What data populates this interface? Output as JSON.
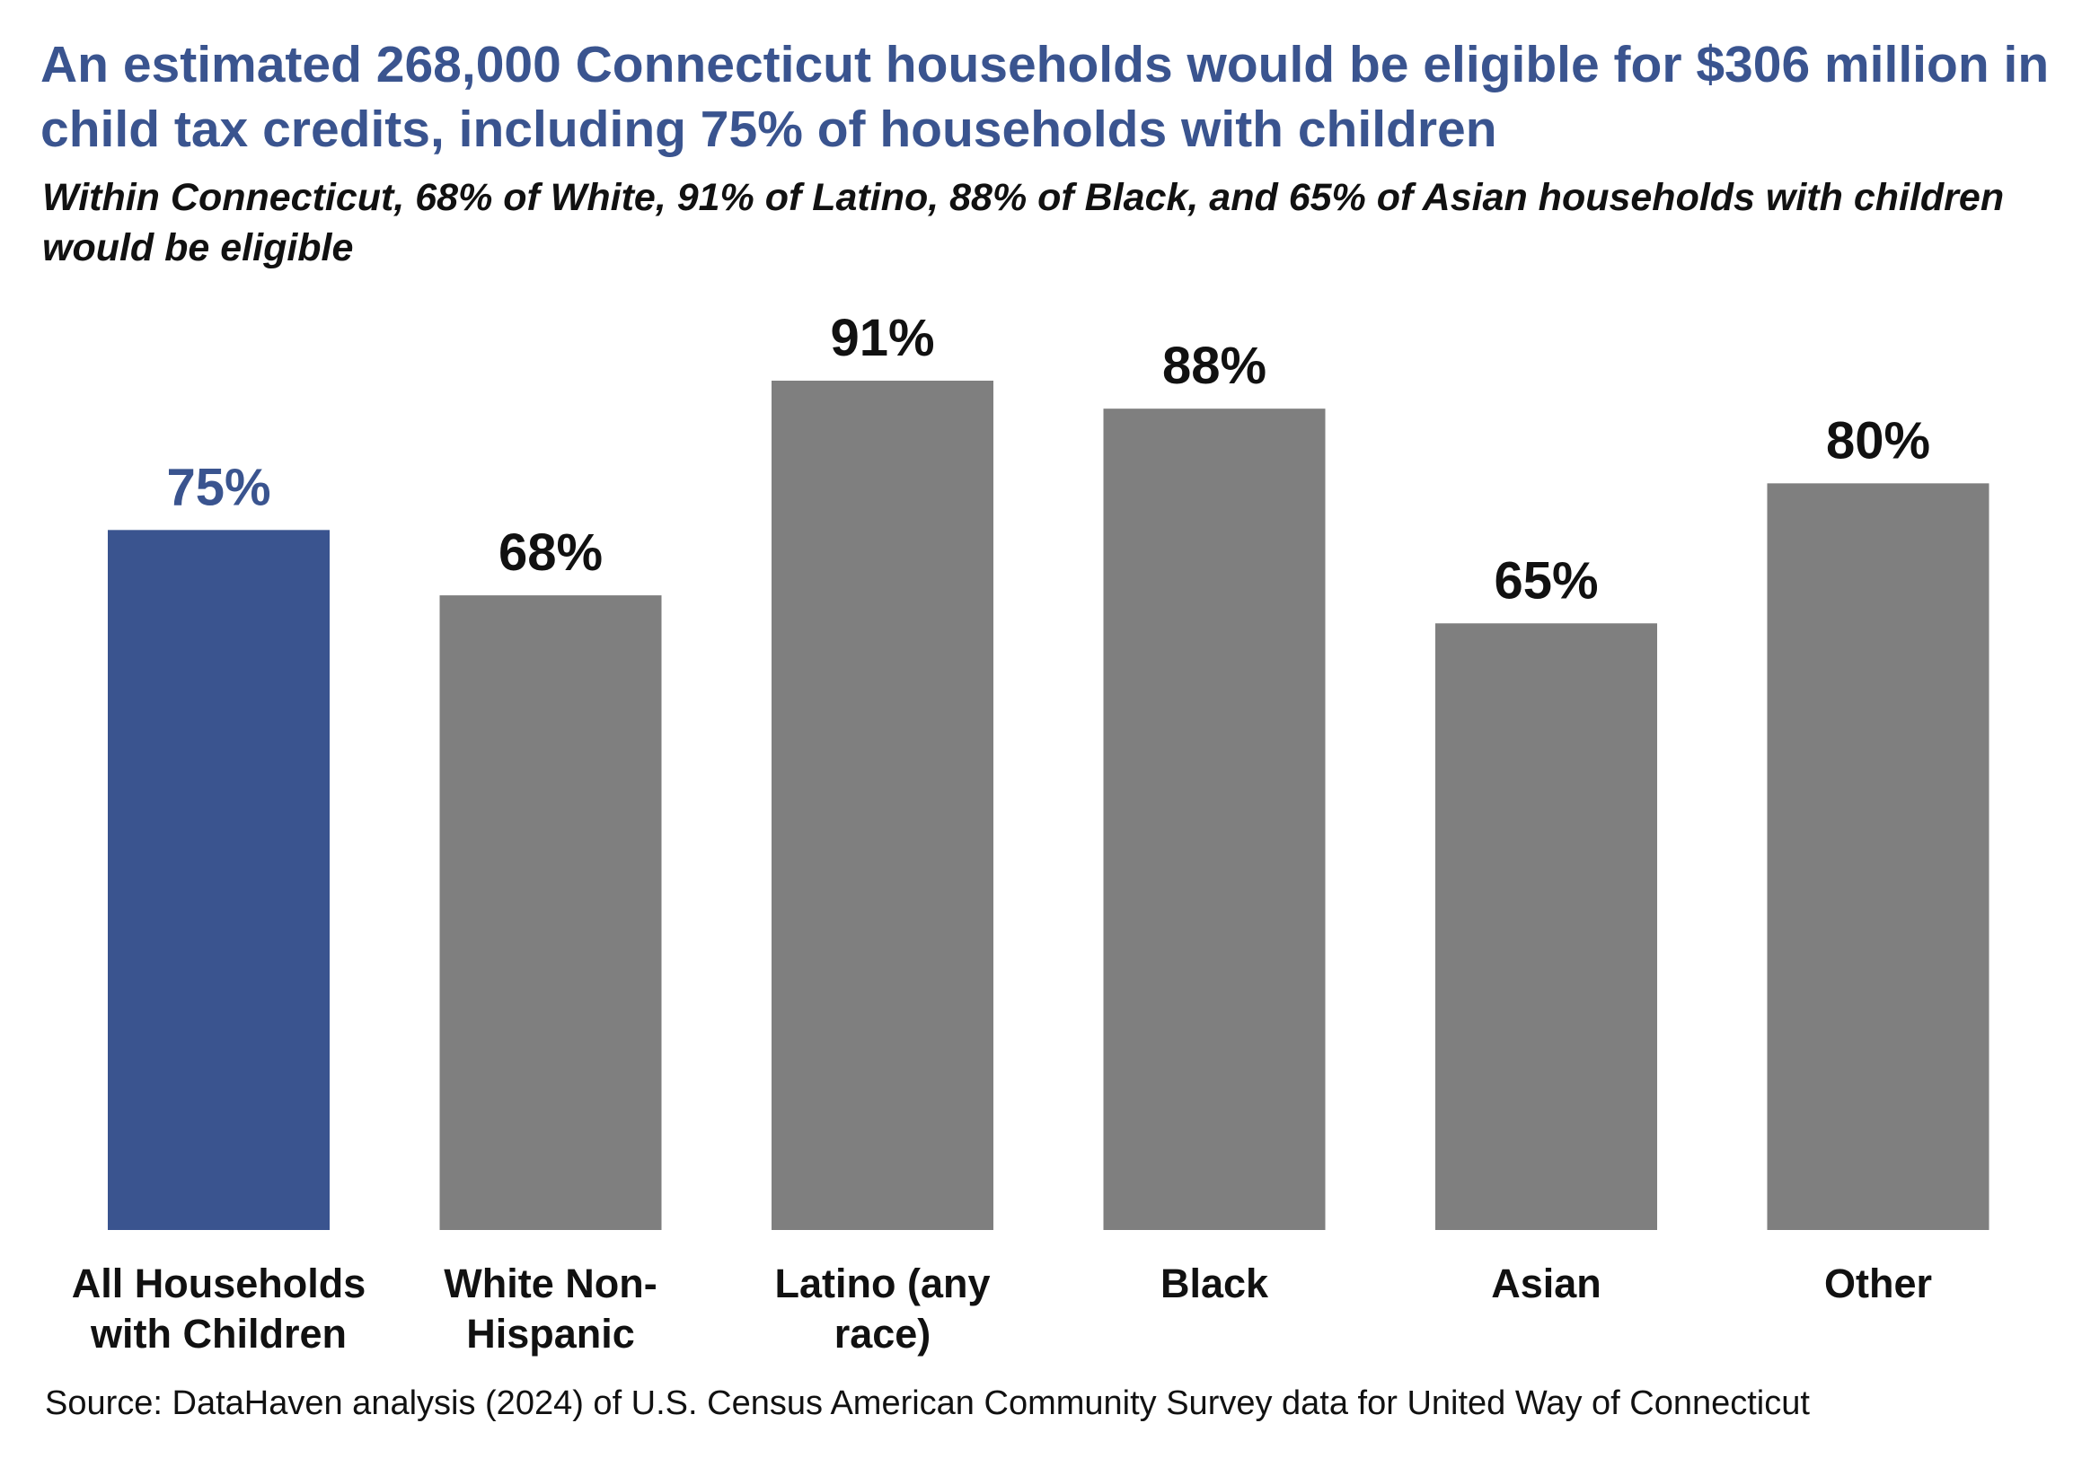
{
  "chart_data": {
    "type": "bar",
    "title": "An estimated 268,000 Connecticut households would be eligible for $306 million in child tax credits, including 75% of households with children",
    "subtitle": "Within Connecticut, 68% of White, 91% of Latino, 88% of Black, and 65% of Asian households with children would be eligible",
    "categories": [
      "All Households with Children",
      "White Non-Hispanic",
      "Latino (any race)",
      "Black",
      "Asian",
      "Other"
    ],
    "values": [
      75,
      68,
      91,
      88,
      65,
      80
    ],
    "value_labels": [
      "75%",
      "68%",
      "91%",
      "88%",
      "65%",
      "80%"
    ],
    "colors": [
      "#3a548f",
      "#7f7f7f",
      "#7f7f7f",
      "#7f7f7f",
      "#7f7f7f",
      "#7f7f7f"
    ],
    "source": "Source: DataHaven analysis (2024) of U.S. Census American Community Survey data for United Way of Connecticut"
  }
}
